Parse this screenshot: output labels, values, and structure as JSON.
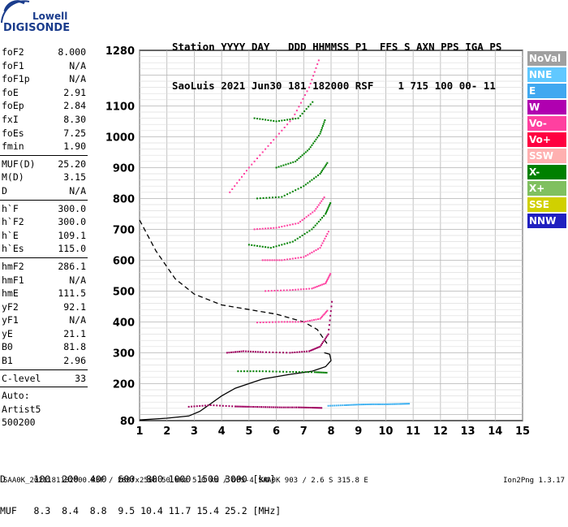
{
  "logo": {
    "line1": "Lowell",
    "line2": "DIGISONDE"
  },
  "header": {
    "line1": "Station YYYY DAY   DDD HHMMSS P1  FFS S AXN PPS IGA PS",
    "line2": "SaoLuis 2021 Jun30 181 182000 RSF    1 715 100 00- 11"
  },
  "params": [
    {
      "group": [
        [
          "foF2",
          "8.000"
        ],
        [
          "foF1",
          "N/A"
        ],
        [
          "foF1p",
          "N/A"
        ],
        [
          "foE",
          "2.91"
        ],
        [
          "foEp",
          "2.84"
        ],
        [
          "fxI",
          "8.30"
        ],
        [
          "foEs",
          "7.25"
        ],
        [
          "fmin",
          "1.90"
        ]
      ]
    },
    {
      "group": [
        [
          "MUF(D)",
          "25.20"
        ],
        [
          "M(D)",
          "3.15"
        ],
        [
          "D",
          "N/A"
        ]
      ]
    },
    {
      "group": [
        [
          "h`F",
          "300.0"
        ],
        [
          "h`F2",
          "300.0"
        ],
        [
          "h`E",
          "109.1"
        ],
        [
          "h`Es",
          "115.0"
        ]
      ]
    },
    {
      "group": [
        [
          "hmF2",
          "286.1"
        ],
        [
          "hmF1",
          "N/A"
        ],
        [
          "hmE",
          "111.5"
        ],
        [
          "yF2",
          "92.1"
        ],
        [
          "yF1",
          "N/A"
        ],
        [
          "yE",
          "21.1"
        ],
        [
          "B0",
          "81.8"
        ],
        [
          "B1",
          "2.96"
        ]
      ]
    },
    {
      "group": [
        [
          "C-level",
          "33"
        ]
      ]
    }
  ],
  "autoscaling": {
    "label": "Auto:",
    "program": "Artist5",
    "version": "500200"
  },
  "legend": [
    {
      "label": "NoVal",
      "color": "#a0a0a0"
    },
    {
      "label": "NNE",
      "color": "#60c8ff"
    },
    {
      "label": "E",
      "color": "#40a8f0"
    },
    {
      "label": "W",
      "color": "#b000b0"
    },
    {
      "label": "Vo-",
      "color": "#ff40a0"
    },
    {
      "label": "Vo+",
      "color": "#ff0040"
    },
    {
      "label": "SSW",
      "color": "#ffb0b0"
    },
    {
      "label": "X-",
      "color": "#008000"
    },
    {
      "label": "X+",
      "color": "#80c060"
    },
    {
      "label": "SSE",
      "color": "#d0d000"
    },
    {
      "label": "NNW",
      "color": "#2020c0"
    }
  ],
  "footer": {
    "line1": "D     100  200  400  600  800 1000 1500 3000 [km]",
    "line2": "MUF   8.3  8.4  8.8  9.5 10.4 11.7 15.4 25.2 [MHz]"
  },
  "bottom_line": "SAA0K_2021181182000.RSF / 280fx256h 50 kHz 5.0 km / DPS-4 SAA0K 903 / 2.6 S 315.8 E",
  "version": "Ion2Png 1.3.17",
  "chart_data": {
    "type": "scatter",
    "title": "",
    "xlabel": "",
    "ylabel": "",
    "xlim": [
      1,
      15
    ],
    "ylim": [
      80,
      1280
    ],
    "x_ticks": [
      1,
      2,
      3,
      4,
      5,
      6,
      7,
      8,
      9,
      10,
      11,
      12,
      13,
      14,
      15
    ],
    "y_ticks": [
      80,
      200,
      300,
      400,
      500,
      600,
      700,
      800,
      900,
      1000,
      1100,
      1280
    ],
    "grid": true,
    "series": [
      {
        "style": "dashed",
        "color": "#000000",
        "points": [
          [
            1.0,
            730
          ],
          [
            1.6,
            630
          ],
          [
            2.3,
            540
          ],
          [
            3.0,
            490
          ],
          [
            4.0,
            455
          ],
          [
            5.0,
            440
          ],
          [
            6.0,
            425
          ],
          [
            7.0,
            400
          ],
          [
            7.5,
            375
          ],
          [
            7.85,
            330
          ]
        ]
      },
      {
        "style": "solid",
        "color": "#000000",
        "points": [
          [
            1.0,
            82
          ],
          [
            2.0,
            88
          ],
          [
            2.8,
            95
          ],
          [
            3.2,
            110
          ],
          [
            3.6,
            135
          ],
          [
            4.0,
            160
          ],
          [
            4.5,
            185
          ],
          [
            5.0,
            200
          ],
          [
            5.5,
            215
          ],
          [
            6.5,
            230
          ],
          [
            7.3,
            240
          ],
          [
            7.8,
            255
          ],
          [
            8.0,
            275
          ],
          [
            7.95,
            295
          ],
          [
            7.75,
            300
          ]
        ]
      },
      {
        "style": "trace",
        "color": "#a00060",
        "points": [
          [
            2.8,
            125
          ],
          [
            3.6,
            130
          ],
          [
            4.5,
            126
          ],
          [
            5.0,
            125
          ],
          [
            5.6,
            124
          ],
          [
            6.2,
            123
          ],
          [
            6.8,
            123
          ],
          [
            7.3,
            122
          ],
          [
            7.7,
            121
          ]
        ]
      },
      {
        "style": "trace",
        "color": "#3db0f0",
        "points": [
          [
            7.9,
            128
          ],
          [
            8.5,
            130
          ],
          [
            9.0,
            132
          ],
          [
            9.5,
            133
          ],
          [
            10.0,
            133
          ],
          [
            10.5,
            134
          ],
          [
            10.9,
            135
          ]
        ]
      },
      {
        "style": "trace",
        "color": "#a00060",
        "points": [
          [
            4.2,
            300
          ],
          [
            4.8,
            305
          ],
          [
            5.5,
            302
          ],
          [
            6.5,
            300
          ],
          [
            7.2,
            305
          ],
          [
            7.6,
            320
          ],
          [
            7.9,
            360
          ],
          [
            8.05,
            480
          ]
        ]
      },
      {
        "style": "trace",
        "color": "#008000",
        "points": [
          [
            4.6,
            240
          ],
          [
            5.5,
            240
          ],
          [
            6.5,
            238
          ],
          [
            7.4,
            237
          ],
          [
            7.9,
            235
          ]
        ]
      },
      {
        "style": "trace",
        "color": "#ff40a0",
        "points": [
          [
            5.3,
            398
          ],
          [
            6.2,
            400
          ],
          [
            7.0,
            400
          ],
          [
            7.6,
            410
          ],
          [
            7.9,
            440
          ]
        ]
      },
      {
        "style": "trace",
        "color": "#ff40a0",
        "points": [
          [
            5.6,
            500
          ],
          [
            6.5,
            503
          ],
          [
            7.3,
            508
          ],
          [
            7.8,
            525
          ],
          [
            8.0,
            560
          ]
        ]
      },
      {
        "style": "trace",
        "color": "#ff40a0",
        "points": [
          [
            5.5,
            600
          ],
          [
            6.2,
            600
          ],
          [
            7.0,
            610
          ],
          [
            7.6,
            640
          ],
          [
            7.95,
            700
          ]
        ]
      },
      {
        "style": "trace",
        "color": "#008000",
        "points": [
          [
            5.0,
            650
          ],
          [
            5.8,
            640
          ],
          [
            6.6,
            660
          ],
          [
            7.3,
            700
          ],
          [
            7.8,
            750
          ],
          [
            8.0,
            790
          ]
        ]
      },
      {
        "style": "trace",
        "color": "#ff40a0",
        "points": [
          [
            5.2,
            700
          ],
          [
            6.0,
            705
          ],
          [
            6.8,
            720
          ],
          [
            7.4,
            760
          ],
          [
            7.8,
            810
          ]
        ]
      },
      {
        "style": "trace",
        "color": "#008000",
        "points": [
          [
            5.3,
            800
          ],
          [
            6.2,
            805
          ],
          [
            7.0,
            840
          ],
          [
            7.6,
            880
          ],
          [
            7.9,
            920
          ]
        ]
      },
      {
        "style": "trace",
        "color": "#008000",
        "points": [
          [
            6.0,
            900
          ],
          [
            6.7,
            920
          ],
          [
            7.2,
            960
          ],
          [
            7.6,
            1010
          ],
          [
            7.8,
            1060
          ]
        ]
      },
      {
        "style": "trace",
        "color": "#ff40a0",
        "points": [
          [
            4.3,
            820
          ],
          [
            5.0,
            900
          ],
          [
            5.8,
            980
          ],
          [
            6.6,
            1060
          ],
          [
            7.2,
            1160
          ],
          [
            7.6,
            1260
          ]
        ]
      },
      {
        "style": "trace",
        "color": "#008000",
        "points": [
          [
            5.2,
            1060
          ],
          [
            6.0,
            1050
          ],
          [
            6.8,
            1060
          ],
          [
            7.4,
            1120
          ]
        ]
      }
    ]
  }
}
